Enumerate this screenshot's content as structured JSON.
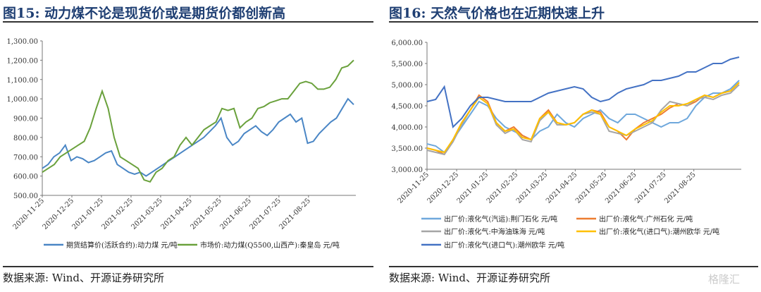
{
  "watermark": "格隆汇",
  "chart_data": [
    {
      "type": "line",
      "title": "图15:  动力煤不论是现货价或是期货价都创新高",
      "source": "数据来源: Wind、开源证券研究所",
      "ylim": [
        500,
        1300
      ],
      "yticks": [
        "500.00",
        "600.00",
        "700.00",
        "800.00",
        "900.00",
        "1,000.00",
        "1,100.00",
        "1,200.00",
        "1,300.00"
      ],
      "xticks": [
        "2020-11-25",
        "2020-12-25",
        "2021-01-25",
        "2021-02-25",
        "2021-03-25",
        "2021-04-25",
        "2021-05-25",
        "2021-06-25",
        "2021-07-25",
        "2021-08-25"
      ],
      "series": [
        {
          "name": "期货结算价(活跃合约):动力煤 元/吨",
          "color": "#4a86c5",
          "values": [
            640,
            660,
            700,
            720,
            760,
            680,
            700,
            690,
            670,
            680,
            700,
            720,
            730,
            660,
            640,
            620,
            610,
            620,
            600,
            620,
            640,
            660,
            680,
            700,
            720,
            740,
            760,
            780,
            800,
            830,
            860,
            900,
            800,
            760,
            780,
            820,
            840,
            860,
            830,
            810,
            840,
            880,
            900,
            920,
            880,
            900,
            770,
            780,
            820,
            850,
            880,
            900,
            950,
            1000,
            970
          ]
        },
        {
          "name": "市场价:动力煤(Q5500,山西产):秦皇岛 元/吨",
          "color": "#6aa13c",
          "values": [
            620,
            640,
            660,
            700,
            720,
            740,
            760,
            780,
            850,
            950,
            1040,
            950,
            800,
            700,
            680,
            660,
            640,
            580,
            570,
            620,
            640,
            680,
            700,
            760,
            800,
            760,
            800,
            840,
            860,
            880,
            950,
            940,
            950,
            850,
            880,
            900,
            950,
            960,
            980,
            990,
            1000,
            1000,
            1040,
            1080,
            1090,
            1080,
            1050,
            1050,
            1060,
            1100,
            1160,
            1170,
            1200
          ]
        }
      ]
    },
    {
      "type": "line",
      "title": "图16:  天然气价格也在近期快速上升",
      "source": "数据来源: Wind、开源证券研究所",
      "ylim": [
        3000,
        6000
      ],
      "yticks": [
        "3,000.00",
        "3,500.00",
        "4,000.00",
        "4,500.00",
        "5,000.00",
        "5,500.00",
        "6,000.00"
      ],
      "xticks": [
        "2020-11-25",
        "2020-12-25",
        "2021-01-25",
        "2021-02-25",
        "2021-03-25",
        "2021-04-25",
        "2021-05-25",
        "2021-06-25",
        "2021-07-25",
        "2021-08-25"
      ],
      "series": [
        {
          "name": "出厂价:液化气(汽运):荆门石化 元/吨",
          "color": "#6fa8dc",
          "values": [
            3600,
            3550,
            3400,
            3700,
            4000,
            4300,
            4600,
            4500,
            4200,
            4000,
            3900,
            3800,
            3700,
            3900,
            4000,
            4300,
            4100,
            4000,
            4200,
            4300,
            4400,
            4200,
            4100,
            4300,
            4300,
            4200,
            4100,
            4000,
            4100,
            4100,
            4200,
            4500,
            4700,
            4800,
            4800,
            4900,
            5100
          ]
        },
        {
          "name": "出厂价:液化气:广州石化 元/吨",
          "color": "#ed7d31",
          "values": [
            3500,
            3450,
            3350,
            3700,
            4100,
            4400,
            4750,
            4600,
            4100,
            3900,
            4000,
            3800,
            3700,
            4200,
            4400,
            4100,
            4050,
            4100,
            4300,
            4400,
            4350,
            4000,
            3900,
            3700,
            3950,
            4100,
            4200,
            4300,
            4450,
            4550,
            4500,
            4600,
            4750,
            4700,
            4800,
            4850,
            5050
          ]
        },
        {
          "name": "出厂价:液化气:中海油珠海 元/吨",
          "color": "#a5a5a5",
          "values": [
            3450,
            3400,
            3350,
            3650,
            4050,
            4400,
            4700,
            4550,
            4050,
            3850,
            3950,
            3700,
            3650,
            4150,
            4350,
            4050,
            4050,
            4100,
            4300,
            4350,
            4300,
            3900,
            3850,
            3800,
            3900,
            4000,
            4100,
            4400,
            4600,
            4550,
            4500,
            4650,
            4700,
            4650,
            4750,
            4800,
            5000
          ]
        },
        {
          "name": "出厂价:液化气(进口气):潮州欧华 元/吨",
          "color": "#ffc000",
          "values": [
            3500,
            3450,
            3400,
            3700,
            4100,
            4400,
            4700,
            4550,
            4100,
            3900,
            3950,
            3750,
            3700,
            4200,
            4350,
            4100,
            4050,
            4100,
            4300,
            4400,
            4300,
            4000,
            3900,
            3800,
            3950,
            4050,
            4150,
            4350,
            4500,
            4500,
            4550,
            4650,
            4750,
            4700,
            4800,
            4850,
            5050
          ]
        },
        {
          "name": "出厂价:液化气(进口气):潮州欧华 元/吨",
          "color": "#4472c4",
          "values": [
            4600,
            4650,
            4950,
            4000,
            4200,
            4500,
            4700,
            4700,
            4650,
            4600,
            4600,
            4600,
            4600,
            4700,
            4800,
            4850,
            4900,
            4950,
            4900,
            4700,
            4600,
            4650,
            4800,
            4900,
            4950,
            5000,
            5100,
            5100,
            5150,
            5200,
            5300,
            5300,
            5400,
            5500,
            5500,
            5600,
            5650
          ]
        }
      ]
    }
  ]
}
